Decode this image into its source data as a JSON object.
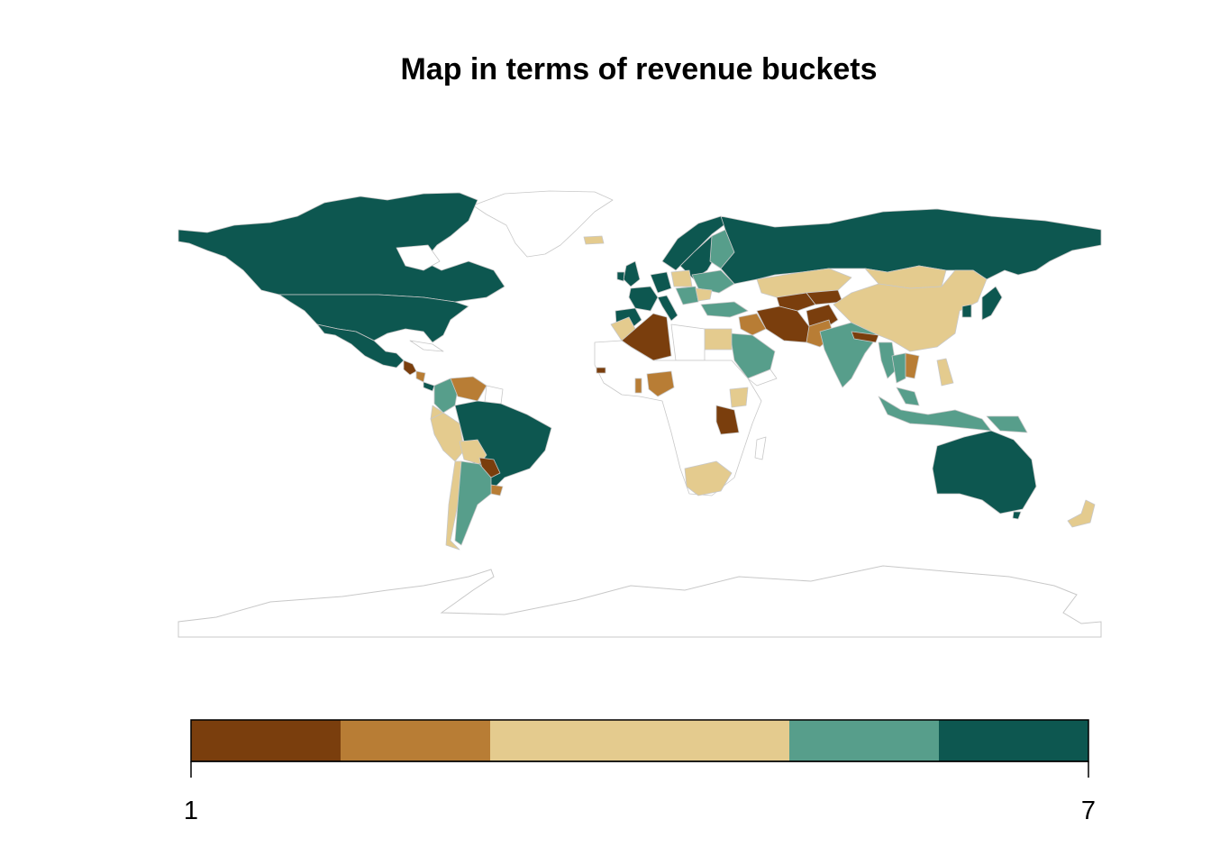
{
  "title": "Map in terms of revenue buckets",
  "legend": {
    "min_label": "1",
    "max_label": "7",
    "buckets": [
      {
        "from": 1,
        "to": 2,
        "color": "#7a3e0d"
      },
      {
        "from": 2,
        "to": 3,
        "color": "#b87d35"
      },
      {
        "from": 3,
        "to": 5,
        "color": "#e4cb8e"
      },
      {
        "from": 5,
        "to": 6,
        "color": "#579e8b"
      },
      {
        "from": 6,
        "to": 7,
        "color": "#0d5750"
      }
    ]
  },
  "colors": {
    "no_data": "#ffffff",
    "border": "#c8c8c8"
  }
}
